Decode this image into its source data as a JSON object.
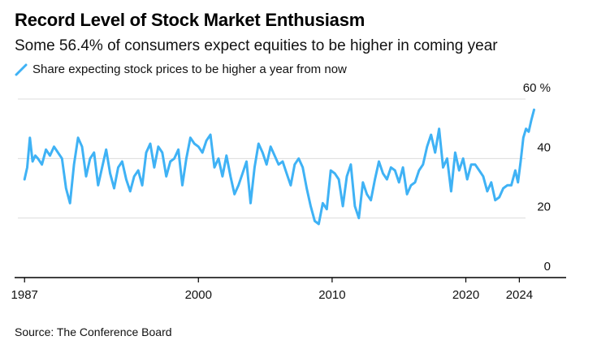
{
  "title": "Record Level of Stock Market Enthusiasm",
  "subtitle": "Some 56.4% of consumers expect equities to be higher in coming year",
  "source": "Source: The Conference Board",
  "colors": {
    "series": "#3fb2f5",
    "grid": "#dcdcdc",
    "axis": "#000000"
  },
  "chart_data": {
    "type": "line",
    "title": "Record Level of Stock Market Enthusiasm",
    "subtitle": "Some 56.4% of consumers expect equities to be higher in coming year",
    "xlabel": "",
    "ylabel": "",
    "xlim": [
      1986.5,
      2027.5
    ],
    "ylim": [
      0,
      60
    ],
    "y_ticks": [
      0,
      20,
      40,
      60
    ],
    "y_tick_labels": [
      "0",
      "20",
      "40",
      "60 %"
    ],
    "x_ticks": [
      1987,
      2000,
      2010,
      2020,
      2024
    ],
    "x_tick_labels": [
      "1987",
      "2000",
      "2010",
      "2020",
      "2024"
    ],
    "grid": true,
    "legend": "top-left",
    "series": [
      {
        "name": "Share expecting stock prices to be higher a year from now",
        "x": [
          1987.0,
          1987.2,
          1987.4,
          1987.6,
          1987.8,
          1988.0,
          1988.3,
          1988.6,
          1988.9,
          1989.2,
          1989.5,
          1989.8,
          1990.1,
          1990.4,
          1990.7,
          1991.0,
          1991.3,
          1991.6,
          1991.9,
          1992.2,
          1992.5,
          1992.8,
          1993.1,
          1993.4,
          1993.7,
          1994.0,
          1994.3,
          1994.6,
          1994.9,
          1995.2,
          1995.5,
          1995.8,
          1996.1,
          1996.4,
          1996.7,
          1997.0,
          1997.3,
          1997.6,
          1997.9,
          1998.2,
          1998.5,
          1998.8,
          1999.1,
          1999.4,
          1999.7,
          2000.0,
          2000.3,
          2000.6,
          2000.9,
          2001.2,
          2001.5,
          2001.8,
          2002.1,
          2002.4,
          2002.7,
          2003.0,
          2003.3,
          2003.6,
          2003.9,
          2004.2,
          2004.5,
          2004.8,
          2005.1,
          2005.4,
          2005.7,
          2006.0,
          2006.3,
          2006.6,
          2006.9,
          2007.2,
          2007.5,
          2007.8,
          2008.1,
          2008.4,
          2008.7,
          2009.0,
          2009.3,
          2009.6,
          2009.9,
          2010.2,
          2010.5,
          2010.8,
          2011.1,
          2011.4,
          2011.7,
          2012.0,
          2012.3,
          2012.6,
          2012.9,
          2013.2,
          2013.5,
          2013.8,
          2014.1,
          2014.4,
          2014.7,
          2015.0,
          2015.3,
          2015.6,
          2015.9,
          2016.2,
          2016.5,
          2016.8,
          2017.1,
          2017.4,
          2017.7,
          2018.0,
          2018.3,
          2018.6,
          2018.9,
          2019.2,
          2019.5,
          2019.8,
          2020.1,
          2020.4,
          2020.7,
          2021.0,
          2021.3,
          2021.6,
          2021.9,
          2022.2,
          2022.5,
          2022.8,
          2023.1,
          2023.4,
          2023.7,
          2023.9,
          2024.1,
          2024.3,
          2024.5,
          2024.7,
          2024.9,
          2025.1
        ],
        "values": [
          33,
          37,
          47,
          39,
          41,
          40,
          38,
          43,
          41,
          44,
          42,
          40,
          30,
          25,
          38,
          47,
          44,
          34,
          40,
          42,
          31,
          37,
          43,
          35,
          30,
          37,
          39,
          33,
          29,
          34,
          36,
          31,
          42,
          45,
          37,
          44,
          42,
          34,
          39,
          40,
          43,
          31,
          40,
          47,
          45,
          44,
          42,
          46,
          48,
          37,
          40,
          34,
          41,
          34,
          28,
          31,
          35,
          39,
          25,
          37,
          45,
          42,
          38,
          44,
          41,
          38,
          39,
          35,
          31,
          38,
          40,
          37,
          30,
          24,
          19,
          18,
          25,
          23,
          36,
          35,
          33,
          24,
          34,
          38,
          24,
          20,
          32,
          28,
          26,
          33,
          39,
          35,
          33,
          37,
          36,
          32,
          37,
          28,
          31,
          32,
          36,
          38,
          44,
          48,
          42,
          50,
          37,
          40,
          29,
          42,
          36,
          40,
          33,
          38,
          38,
          36,
          34,
          29,
          32,
          26,
          27,
          30,
          31,
          31,
          36,
          32,
          39,
          47,
          50,
          49,
          53,
          56.4
        ]
      }
    ]
  },
  "legend_label": "Share expecting stock prices to be higher a year from now"
}
